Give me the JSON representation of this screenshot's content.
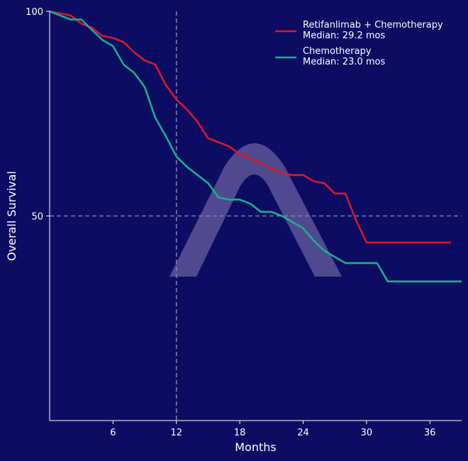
{
  "chart_data": {
    "type": "line",
    "title": "",
    "xlabel": "Months",
    "ylabel": "Overall Survival",
    "xlim": [
      0,
      39
    ],
    "ylim": [
      0,
      100
    ],
    "x_ticks": [
      6,
      12,
      18,
      24,
      30,
      36
    ],
    "y_ticks": [
      50,
      100
    ],
    "reference_lines": {
      "x": 12,
      "y": 50
    },
    "legend_position": "top-right",
    "grid": false,
    "colors": {
      "background": "#0c0c63",
      "axis": "#ffffff",
      "reference": "#7e7eb8",
      "watermark": "#5d5596"
    },
    "watermark_icon": "arch-logo",
    "series": [
      {
        "name": "Retifanlimab + Chemotherapy",
        "note": "Median: 29.2 mos",
        "color": "#d9172b",
        "x": [
          0,
          1,
          2,
          3,
          4,
          5,
          6,
          7,
          8,
          9,
          10,
          11,
          12,
          13,
          14,
          15,
          16,
          17,
          18,
          19,
          20,
          21,
          22,
          23,
          24,
          25,
          26,
          27,
          28,
          29,
          30,
          31,
          32,
          33,
          34,
          35,
          36,
          37,
          38
        ],
        "y": [
          100,
          99.5,
          99,
          97,
          96,
          94,
          93.5,
          92.5,
          90,
          88,
          87,
          82,
          78.5,
          76,
          73,
          69,
          68,
          67,
          65,
          64,
          63,
          61.5,
          60.5,
          60,
          60,
          58.5,
          58,
          55.5,
          55.5,
          49,
          43.5,
          43.5,
          43.5,
          43.5,
          43.5,
          43.5,
          43.5,
          43.5,
          43.5
        ]
      },
      {
        "name": "Chemotherapy",
        "note": "Median: 23.0 mos",
        "color": "#1ab18a",
        "x": [
          0,
          1,
          2,
          3,
          4,
          5,
          6,
          7,
          8,
          9,
          10,
          11,
          12,
          13,
          14,
          15,
          16,
          17,
          18,
          19,
          20,
          21,
          22,
          23,
          24,
          25,
          26,
          27,
          28,
          29,
          30,
          31,
          32,
          33,
          34,
          35,
          36,
          37,
          38,
          39
        ],
        "y": [
          100,
          99,
          98,
          98,
          95.5,
          93,
          91.5,
          87,
          85,
          81.5,
          74,
          69.5,
          64.5,
          62,
          60,
          58,
          54.5,
          54,
          54,
          53,
          51,
          51,
          50,
          48.5,
          47,
          44,
          41.5,
          40,
          38.5,
          38.5,
          38.5,
          38.5,
          34,
          34,
          34,
          34,
          34,
          34,
          34,
          34
        ]
      }
    ]
  }
}
